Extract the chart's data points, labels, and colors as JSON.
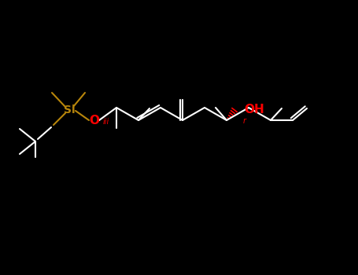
{
  "background_color": "#000000",
  "bond_color": "#ffffff",
  "si_color": "#b8860b",
  "o_color": "#ff0000",
  "label_si": "Si",
  "label_oh": "OH",
  "stereo_iii": "iii",
  "stereo_r": "r",
  "figsize": [
    4.55,
    3.5
  ],
  "dpi": 100,
  "BLW": 1.5
}
